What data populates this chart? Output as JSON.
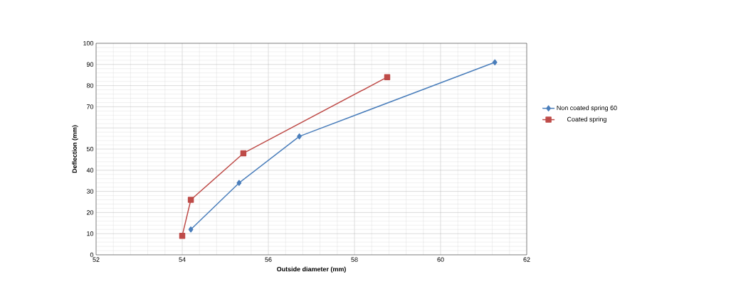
{
  "chart_data": {
    "type": "line",
    "xlabel": "Outside diameter (mm)",
    "ylabel": "Deflection (mm)",
    "xlim": [
      52,
      62
    ],
    "xticks": [
      52,
      54,
      56,
      58,
      60,
      62
    ],
    "ylim": [
      0,
      100
    ],
    "yticks": [
      0,
      10,
      20,
      30,
      40,
      50,
      {
        "value": 60,
        "label": null
      },
      70,
      80,
      90,
      100
    ],
    "grid": true,
    "legend": "right",
    "line_style": "solid",
    "series": [
      {
        "name": "Non coated spring 60",
        "color": "#4a7ebb",
        "marker": "diamond",
        "x": [
          54.2,
          55.32,
          56.72,
          61.26
        ],
        "values": [
          12,
          34,
          56,
          91
        ]
      },
      {
        "name": "Coated spring",
        "color": "#be4b48",
        "marker": "square",
        "x": [
          54.0,
          54.2,
          55.42,
          58.76
        ],
        "values": [
          9,
          26,
          48,
          84
        ]
      }
    ]
  }
}
